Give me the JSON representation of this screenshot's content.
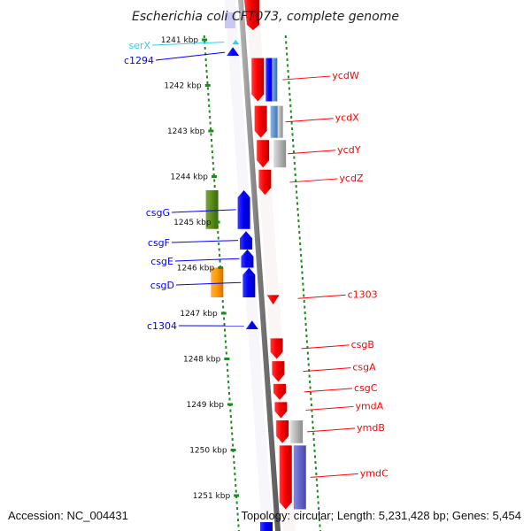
{
  "title": "Escherichia coli CFT073, complete genome",
  "footer": {
    "accession": "Accession: NC_004431",
    "topology": "Topology: circular; Length: 5,231,428 bp; Genes: 5,454"
  },
  "map": {
    "units": "kbp",
    "start_kbp": 1240.6,
    "end_kbp": 1251.4,
    "ticks": [
      {
        "kbp": 1241,
        "label": "1241 kbp"
      },
      {
        "kbp": 1242,
        "label": "1242 kbp"
      },
      {
        "kbp": 1243,
        "label": "1243 kbp"
      },
      {
        "kbp": 1244,
        "label": "1244 kbp"
      },
      {
        "kbp": 1245,
        "label": "1245 kbp"
      },
      {
        "kbp": 1246,
        "label": "1246 kbp"
      },
      {
        "kbp": 1247,
        "label": "1247 kbp"
      },
      {
        "kbp": 1248,
        "label": "1248 kbp"
      },
      {
        "kbp": 1249,
        "label": "1249 kbp"
      },
      {
        "kbp": 1250,
        "label": "1250 kbp"
      },
      {
        "kbp": 1251,
        "label": "1251 kbp"
      }
    ],
    "colors": {
      "reverse_gene": "#ff0000",
      "forward_gene": "#0000ff",
      "rna": "#33ccee",
      "green_cds": "#5a8a1a",
      "orange_cds": "#ff9900",
      "gray_cds": "#b4b4b4",
      "steelblue_cds": "#5a8ec8",
      "purple_cds": "#6666cc",
      "dots": "#1f8a1f",
      "backbone": "#888888"
    },
    "genes": [
      {
        "name": "serX",
        "strand": "+",
        "start": 1241.0,
        "end": 1241.1,
        "kind": "rna"
      },
      {
        "name": "c1294",
        "strand": "+",
        "start": 1241.2,
        "end": 1241.35,
        "kind": "gene"
      },
      {
        "name": "ycdW",
        "strand": "-",
        "start": 1241.4,
        "end": 1242.35,
        "kind": "gene"
      },
      {
        "name": "ycdX",
        "strand": "-",
        "start": 1242.45,
        "end": 1243.15,
        "kind": "gene"
      },
      {
        "name": "ycdY",
        "strand": "-",
        "start": 1243.2,
        "end": 1243.8,
        "kind": "gene"
      },
      {
        "name": "ycdZ",
        "strand": "-",
        "start": 1243.85,
        "end": 1244.4,
        "kind": "gene"
      },
      {
        "name": "csgG",
        "strand": "+",
        "start": 1244.3,
        "end": 1245.15,
        "kind": "gene"
      },
      {
        "name": "csgF",
        "strand": "+",
        "start": 1245.2,
        "end": 1245.6,
        "kind": "gene"
      },
      {
        "name": "csgE",
        "strand": "+",
        "start": 1245.6,
        "end": 1246.0,
        "kind": "gene"
      },
      {
        "name": "csgD",
        "strand": "+",
        "start": 1246.0,
        "end": 1246.65,
        "kind": "gene"
      },
      {
        "name": "c1303",
        "strand": "-",
        "start": 1246.6,
        "end": 1246.75,
        "kind": "gene"
      },
      {
        "name": "c1304",
        "strand": "+",
        "start": 1247.2,
        "end": 1247.35,
        "kind": "gene"
      },
      {
        "name": "csgB",
        "strand": "-",
        "start": 1247.55,
        "end": 1248.0,
        "kind": "gene"
      },
      {
        "name": "csgA",
        "strand": "-",
        "start": 1248.05,
        "end": 1248.5,
        "kind": "gene"
      },
      {
        "name": "csgC",
        "strand": "-",
        "start": 1248.55,
        "end": 1248.9,
        "kind": "gene"
      },
      {
        "name": "ymdA",
        "strand": "-",
        "start": 1248.95,
        "end": 1249.3,
        "kind": "gene"
      },
      {
        "name": "ymdB",
        "strand": "-",
        "start": 1249.35,
        "end": 1249.85,
        "kind": "gene"
      },
      {
        "name": "ymdC",
        "strand": "-",
        "start": 1249.9,
        "end": 1251.3,
        "kind": "gene"
      }
    ]
  }
}
